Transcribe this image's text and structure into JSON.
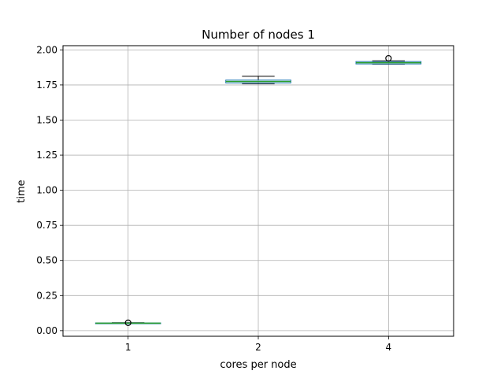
{
  "chart_data": {
    "type": "box",
    "title": "Number of nodes 1",
    "xlabel": "cores per node",
    "ylabel": "time",
    "categories": [
      "1",
      "2",
      "4"
    ],
    "ylim": [
      -0.04,
      2.03
    ],
    "yticks": [
      "0.00",
      "0.25",
      "0.50",
      "0.75",
      "1.00",
      "1.25",
      "1.50",
      "1.75",
      "2.00"
    ],
    "ytick_values": [
      0,
      0.25,
      0.5,
      0.75,
      1.0,
      1.25,
      1.5,
      1.75,
      2.0
    ],
    "grid": true,
    "boxes": [
      {
        "category": "1",
        "whislo": 0.05,
        "q1": 0.052,
        "med": 0.053,
        "q3": 0.055,
        "whishi": 0.057,
        "fliers": [
          0.056
        ]
      },
      {
        "category": "2",
        "whislo": 1.76,
        "q1": 1.765,
        "med": 1.775,
        "q3": 1.785,
        "whishi": 1.812,
        "fliers": []
      },
      {
        "category": "4",
        "whislo": 1.898,
        "q1": 1.9,
        "med": 1.909,
        "q3": 1.917,
        "whishi": 1.922,
        "fliers": [
          1.94
        ]
      }
    ],
    "colors": {
      "box": "#1f77b4",
      "median": "#2ca02c",
      "whisker": "#000000",
      "flier": "#000000",
      "grid": "#b0b0b0"
    }
  }
}
